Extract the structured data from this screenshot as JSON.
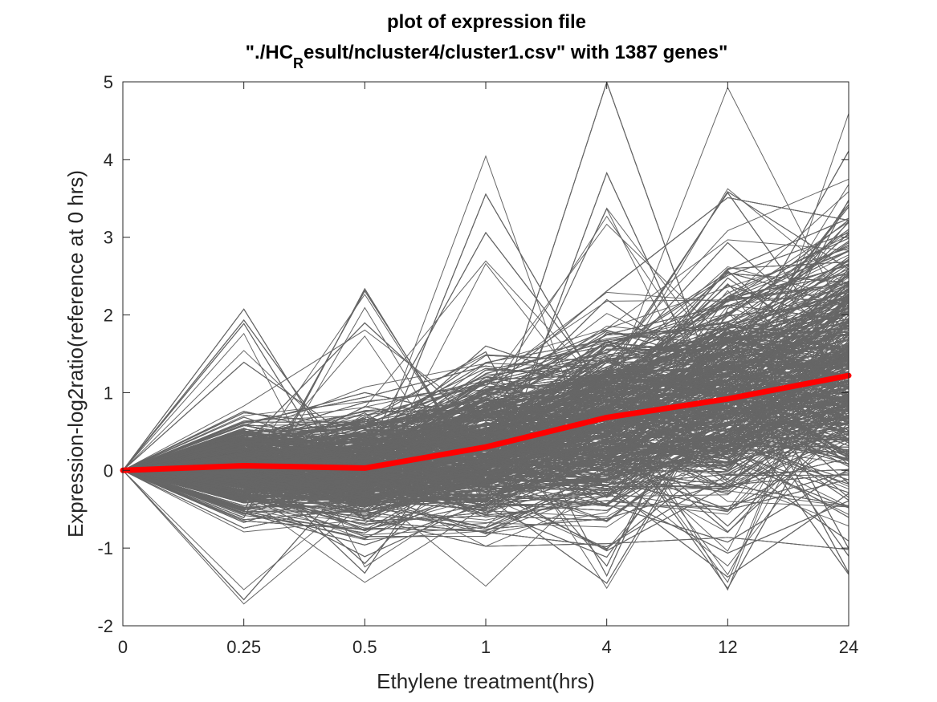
{
  "chart_data": {
    "type": "line",
    "title": {
      "line1": "plot of expression file",
      "line2_prefix": "\"./HC",
      "line2_subscript": "R",
      "line2_suffix": "esult/ncluster4/cluster1.csv\" with 1387 genes\""
    },
    "xlabel": "Ethylene treatment(hrs)",
    "ylabel": "Expression-log2ratio(reference at 0 hrs)",
    "categories": [
      "0",
      "0.25",
      "0.5",
      "1",
      "4",
      "12",
      "24"
    ],
    "yticks": [
      "-2",
      "-1",
      "0",
      "1",
      "2",
      "3",
      "4",
      "5"
    ],
    "ylim": [
      -2,
      5
    ],
    "gene_count": 1387,
    "gene_line_color": "#666666",
    "mean_series": {
      "values": [
        0.0,
        0.06,
        0.03,
        0.3,
        0.68,
        0.92,
        1.22
      ],
      "color": "#ff0000"
    },
    "gene_profile_envelope": {
      "typical_low": [
        0.0,
        -0.35,
        -0.5,
        -0.4,
        -0.2,
        0.0,
        0.2
      ],
      "typical_high": [
        0.0,
        0.45,
        0.55,
        1.0,
        1.5,
        2.0,
        2.6
      ],
      "extreme_low": [
        0.0,
        -1.75,
        -1.75,
        -1.9,
        -1.65,
        -1.55,
        -1.4
      ],
      "extreme_high": [
        0.0,
        2.25,
        2.7,
        4.05,
        5.0,
        5.0,
        5.0
      ]
    }
  }
}
